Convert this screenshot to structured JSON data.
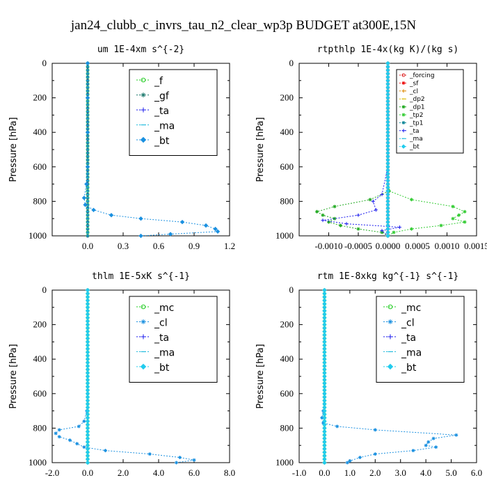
{
  "figure": {
    "title": "jan24_clubb_c_invrs_tau_n2_clear_wp3p  BUDGET at300E,15N"
  },
  "chart_data": [
    {
      "id": "um",
      "type": "line",
      "title": "um  1E-4xm s^{-2}",
      "ylabel": "Pressure [hPa]",
      "xlim": [
        -0.3,
        1.2
      ],
      "ylim": [
        1000,
        0
      ],
      "xticks": [
        0.0,
        0.3,
        0.6,
        0.9,
        1.2
      ],
      "xticklabels": [
        "0.0",
        "0.3",
        "0.6",
        "0.9",
        "1.2"
      ],
      "yticks": [
        0,
        200,
        400,
        600,
        800,
        1000
      ],
      "yticklabels": [
        "0",
        "200",
        "400",
        "600",
        "800",
        "1000"
      ],
      "legend_position": "top-right",
      "legend_size": "large",
      "series": [
        {
          "name": "_f",
          "color": "#22cc22",
          "marker": "circle",
          "y": [
            0,
            1000
          ],
          "x": [
            0,
            0
          ]
        },
        {
          "name": "_gf",
          "color": "#1e7a6e",
          "marker": "asterisk",
          "y": [
            0,
            1000
          ],
          "x": [
            0,
            0
          ]
        },
        {
          "name": "_ta",
          "color": "#1a1aee",
          "marker": "plus",
          "y": [
            0,
            1000
          ],
          "x": [
            0,
            0
          ]
        },
        {
          "name": "_ma",
          "color": "#22bbdd",
          "marker": "dash",
          "y": [
            0,
            1000
          ],
          "x": [
            0,
            0
          ]
        },
        {
          "name": "_bt",
          "color": "#1a90e0",
          "marker": "diamond",
          "y": [
            0,
            200,
            400,
            600,
            700,
            780,
            820,
            850,
            880,
            900,
            920,
            940,
            960,
            975,
            990,
            1000
          ],
          "x": [
            0,
            0,
            0,
            0,
            -0.01,
            -0.03,
            -0.02,
            0.05,
            0.2,
            0.45,
            0.8,
            1.0,
            1.08,
            1.1,
            0.7,
            0.45
          ]
        }
      ]
    },
    {
      "id": "rtpthlp",
      "type": "line",
      "title": "rtpthlp  1E-4x(kg K)/(kg s)",
      "ylabel": "Pressure [hPa]",
      "xlim": [
        -0.0015,
        0.0015
      ],
      "ylim": [
        1000,
        0
      ],
      "xticks": [
        -0.001,
        -0.0005,
        0.0,
        0.0005,
        0.001,
        0.0015
      ],
      "xticklabels": [
        "-0.0010",
        "-0.0005",
        "0.0000",
        "0.0005",
        "0.0010",
        "0.0015"
      ],
      "yticks": [
        0,
        200,
        400,
        600,
        800,
        1000
      ],
      "yticklabels": [
        "0",
        "200",
        "400",
        "600",
        "800",
        "1000"
      ],
      "legend_position": "top-right",
      "legend_size": "small",
      "series": [
        {
          "name": "_forcing",
          "color": "#dd2222",
          "marker": "circle",
          "y": [
            0,
            1000
          ],
          "x": [
            0,
            0
          ]
        },
        {
          "name": "_sf",
          "color": "#ee1111",
          "marker": "asterisk",
          "y": [
            0,
            1000
          ],
          "x": [
            0,
            0
          ]
        },
        {
          "name": "_cl",
          "color": "#dd8800",
          "marker": "plus",
          "y": [
            0,
            1000
          ],
          "x": [
            0,
            0
          ]
        },
        {
          "name": "_dp2",
          "color": "#ddbb00",
          "marker": "dash",
          "y": [
            0,
            1000
          ],
          "x": [
            0,
            0
          ]
        },
        {
          "name": "_dp1",
          "color": "#22aa22",
          "marker": "asterisk",
          "y": [
            0,
            600,
            740,
            790,
            830,
            860,
            880,
            900,
            920,
            940,
            960,
            980,
            1000
          ],
          "x": [
            0,
            0,
            2e-05,
            -0.0003,
            -0.0009,
            -0.0012,
            -0.0011,
            -0.0009,
            -0.001,
            -0.0008,
            -0.0005,
            -0.0001,
            0
          ]
        },
        {
          "name": "_tp2",
          "color": "#33cc33",
          "marker": "asterisk",
          "y": [
            0,
            600,
            740,
            790,
            830,
            860,
            880,
            900,
            920,
            940,
            960,
            980,
            1000
          ],
          "x": [
            0,
            0,
            2e-05,
            0.0004,
            0.0011,
            0.0013,
            0.0012,
            0.0011,
            0.0013,
            0.0009,
            0.0004,
            0.0001,
            0
          ]
        },
        {
          "name": "_tp1",
          "color": "#118899",
          "marker": "asterisk",
          "y": [
            0,
            1000
          ],
          "x": [
            0,
            0
          ]
        },
        {
          "name": "_ta",
          "color": "#1a1aee",
          "marker": "plus",
          "y": [
            0,
            600,
            760,
            800,
            850,
            880,
            910,
            930,
            950,
            970,
            1000
          ],
          "x": [
            0,
            0,
            -0.0001,
            -0.00025,
            -0.0002,
            -0.0005,
            -0.0011,
            -0.0007,
            0.0002,
            -0.0001,
            0
          ]
        },
        {
          "name": "_ma",
          "color": "#22bbdd",
          "marker": "dash",
          "y": [
            0,
            1000
          ],
          "x": [
            0,
            0
          ]
        },
        {
          "name": "_bt",
          "color": "#22ccee",
          "marker": "diamond",
          "y": [
            0,
            1000
          ],
          "x": [
            0,
            0
          ]
        }
      ]
    },
    {
      "id": "thlm",
      "type": "line",
      "title": "thlm  1E-5xK  s^{-1}",
      "ylabel": "Pressure [hPa]",
      "xlim": [
        -2.0,
        8.0
      ],
      "ylim": [
        1000,
        0
      ],
      "xticks": [
        -2.0,
        0.0,
        2.0,
        4.0,
        6.0,
        8.0
      ],
      "xticklabels": [
        "-2.0",
        "0.0",
        "2.0",
        "4.0",
        "6.0",
        "8.0"
      ],
      "yticks": [
        0,
        200,
        400,
        600,
        800,
        1000
      ],
      "yticklabels": [
        "0",
        "200",
        "400",
        "600",
        "800",
        "1000"
      ],
      "legend_position": "top-right",
      "legend_size": "large",
      "series": [
        {
          "name": "_mc",
          "color": "#22cc22",
          "marker": "circle",
          "y": [
            0,
            1000
          ],
          "x": [
            0,
            0
          ]
        },
        {
          "name": "_cl",
          "color": "#1a90e0",
          "marker": "asterisk",
          "y": [
            0,
            600,
            700,
            760,
            790,
            810,
            830,
            850,
            870,
            890,
            910,
            930,
            950,
            970,
            985,
            1000
          ],
          "x": [
            0,
            0,
            -0.05,
            -0.2,
            -0.5,
            -1.6,
            -1.8,
            -1.6,
            -1.0,
            -0.6,
            -0.2,
            1.0,
            3.5,
            5.2,
            6.0,
            5.0
          ]
        },
        {
          "name": "_ta",
          "color": "#1a1aee",
          "marker": "plus",
          "y": [
            0,
            1000
          ],
          "x": [
            0,
            0
          ]
        },
        {
          "name": "_ma",
          "color": "#22bbdd",
          "marker": "dash",
          "y": [
            0,
            1000
          ],
          "x": [
            0,
            0
          ]
        },
        {
          "name": "_bt",
          "color": "#22ccee",
          "marker": "diamond",
          "y": [
            0,
            1000
          ],
          "x": [
            0,
            0
          ]
        }
      ]
    },
    {
      "id": "rtm",
      "type": "line",
      "title": "rtm  1E-8xkg kg^{-1} s^{-1}",
      "ylabel": "Pressure [hPa]",
      "xlim": [
        -1.0,
        6.0
      ],
      "ylim": [
        1000,
        0
      ],
      "xticks": [
        -1.0,
        0.0,
        1.0,
        2.0,
        3.0,
        4.0,
        5.0,
        6.0
      ],
      "xticklabels": [
        "-1.0",
        "0.0",
        "1.0",
        "2.0",
        "3.0",
        "4.0",
        "5.0",
        "6.0"
      ],
      "yticks": [
        0,
        200,
        400,
        600,
        800,
        1000
      ],
      "yticklabels": [
        "0",
        "200",
        "400",
        "600",
        "800",
        "1000"
      ],
      "legend_position": "top-right",
      "legend_size": "large",
      "series": [
        {
          "name": "_mc",
          "color": "#22cc22",
          "marker": "circle",
          "y": [
            0,
            1000
          ],
          "x": [
            0,
            0
          ]
        },
        {
          "name": "_cl",
          "color": "#1a90e0",
          "marker": "asterisk",
          "y": [
            0,
            600,
            700,
            740,
            770,
            790,
            810,
            840,
            860,
            880,
            900,
            910,
            930,
            950,
            970,
            990,
            1000
          ],
          "x": [
            0,
            0,
            -0.05,
            -0.1,
            -0.05,
            0.5,
            2.0,
            5.2,
            4.3,
            4.1,
            4.0,
            4.4,
            3.5,
            2.0,
            1.4,
            1.0,
            0.9
          ]
        },
        {
          "name": "_ta",
          "color": "#1a1aee",
          "marker": "plus",
          "y": [
            0,
            1000
          ],
          "x": [
            0,
            0
          ]
        },
        {
          "name": "_ma",
          "color": "#22bbdd",
          "marker": "dash",
          "y": [
            0,
            1000
          ],
          "x": [
            0,
            0
          ]
        },
        {
          "name": "_bt",
          "color": "#22ccee",
          "marker": "diamond",
          "y": [
            0,
            1000
          ],
          "x": [
            0,
            0
          ]
        }
      ]
    }
  ]
}
